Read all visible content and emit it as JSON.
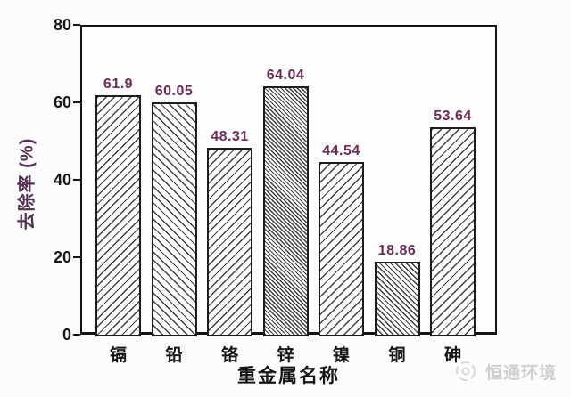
{
  "chart_data": {
    "type": "bar",
    "title": "",
    "xlabel": "重金属名称",
    "ylabel": "去除率 (%)",
    "ylim": [
      0,
      80
    ],
    "yticks": [
      0,
      20,
      40,
      60,
      80
    ],
    "grid": false,
    "legend": null,
    "categories": [
      "镉",
      "铅",
      "铬",
      "锌",
      "镍",
      "铜",
      "砷"
    ],
    "values": [
      61.9,
      60.05,
      48.31,
      64.04,
      44.54,
      18.86,
      53.64
    ],
    "value_labels": [
      "61.9",
      "60.05",
      "48.31",
      "64.04",
      "44.54",
      "18.86",
      "53.64"
    ],
    "bar_hatches": [
      {
        "direction": "forward",
        "spacing": 6.5
      },
      {
        "direction": "backward",
        "spacing": 6.5
      },
      {
        "direction": "forward",
        "spacing": 6.5
      },
      {
        "direction": "backward",
        "spacing": 3.2
      },
      {
        "direction": "forward",
        "spacing": 7
      },
      {
        "direction": "backward",
        "spacing": 4.2
      },
      {
        "direction": "forward",
        "spacing": 7
      }
    ],
    "colors": {
      "value_label": "#6e2a58",
      "y_title": "#533051",
      "axis_text": "#161616",
      "axis_line": "#141414",
      "hatch_line": "#3d3d3d",
      "bar_fill": "#fefefe"
    }
  },
  "watermark": {
    "text": "恒通环境",
    "color": "#c8c8c8"
  }
}
